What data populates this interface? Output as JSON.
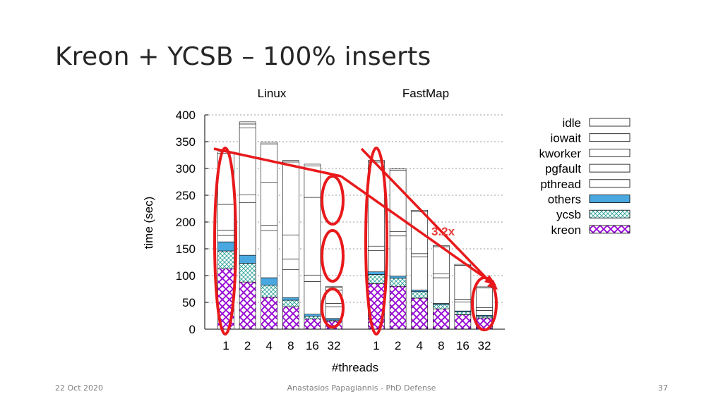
{
  "slide": {
    "title": "Kreon + YCSB – 100% inserts",
    "footer_left": "22 Oct 2020",
    "footer_center": "Anastasios Papagiannis - PhD Defense",
    "footer_right": "37"
  },
  "chart_data": {
    "type": "bar",
    "stacked": true,
    "groups": [
      "Linux",
      "FastMap"
    ],
    "categories": [
      "1",
      "2",
      "4",
      "8",
      "16",
      "32"
    ],
    "xlabel": "#threads",
    "ylabel": "time (sec)",
    "ylim": [
      0,
      400
    ],
    "yticks": [
      "0",
      "50",
      "100",
      "150",
      "200",
      "250",
      "300",
      "350",
      "400"
    ],
    "grid": true,
    "legend_position": "right",
    "series_order": [
      "kreon",
      "ycsb",
      "others",
      "pthread",
      "pgfault",
      "kworker",
      "iowait",
      "idle"
    ],
    "series": [
      {
        "name": "idle",
        "color": "#ffffff",
        "pattern": "empty",
        "linux": [
          3,
          4,
          3,
          3,
          3,
          2
        ],
        "fastmap": [
          3,
          2,
          3,
          2,
          2,
          2
        ]
      },
      {
        "name": "iowait",
        "color": "#ffffff",
        "pattern": "empty",
        "linux": [
          95,
          7,
          72,
          136,
          59,
          5
        ],
        "fastmap": [
          0,
          0,
          0,
          0,
          0,
          0
        ]
      },
      {
        "name": "kworker",
        "color": "#ffffff",
        "pattern": "empty",
        "linux": [
          48,
          125,
          80,
          45,
          145,
          25
        ],
        "fastmap": [
          157,
          115,
          78,
          51,
          63,
          37
        ]
      },
      {
        "name": "pgfault",
        "color": "#ffffff",
        "pattern": "empty",
        "linux": [
          10,
          15,
          10,
          20,
          12,
          6
        ],
        "fastmap": [
          8,
          8,
          6,
          7,
          5,
          5
        ]
      },
      {
        "name": "pthread",
        "color": "#ffffff",
        "pattern": "empty",
        "linux": [
          12,
          98,
          88,
          52,
          61,
          22
        ],
        "fastmap": [
          40,
          75,
          62,
          48,
          17,
          9
        ]
      },
      {
        "name": "others",
        "color": "#4aa8e0",
        "pattern": "solid",
        "linux": [
          17,
          15,
          14,
          5,
          4,
          3
        ],
        "fastmap": [
          5,
          4,
          3,
          2,
          2,
          2
        ]
      },
      {
        "name": "ycsb",
        "color": "#2aa198",
        "pattern": "crosshatch",
        "linux": [
          33,
          35,
          22,
          12,
          5,
          2
        ],
        "fastmap": [
          17,
          15,
          12,
          8,
          5,
          3
        ]
      },
      {
        "name": "kreon",
        "color": "#9400d3",
        "pattern": "crosshatch",
        "linux": [
          113,
          88,
          60,
          42,
          19,
          15
        ],
        "fastmap": [
          85,
          80,
          58,
          38,
          27,
          21
        ]
      }
    ],
    "annotation": {
      "text": "3.2x",
      "color": "#e53935"
    }
  }
}
